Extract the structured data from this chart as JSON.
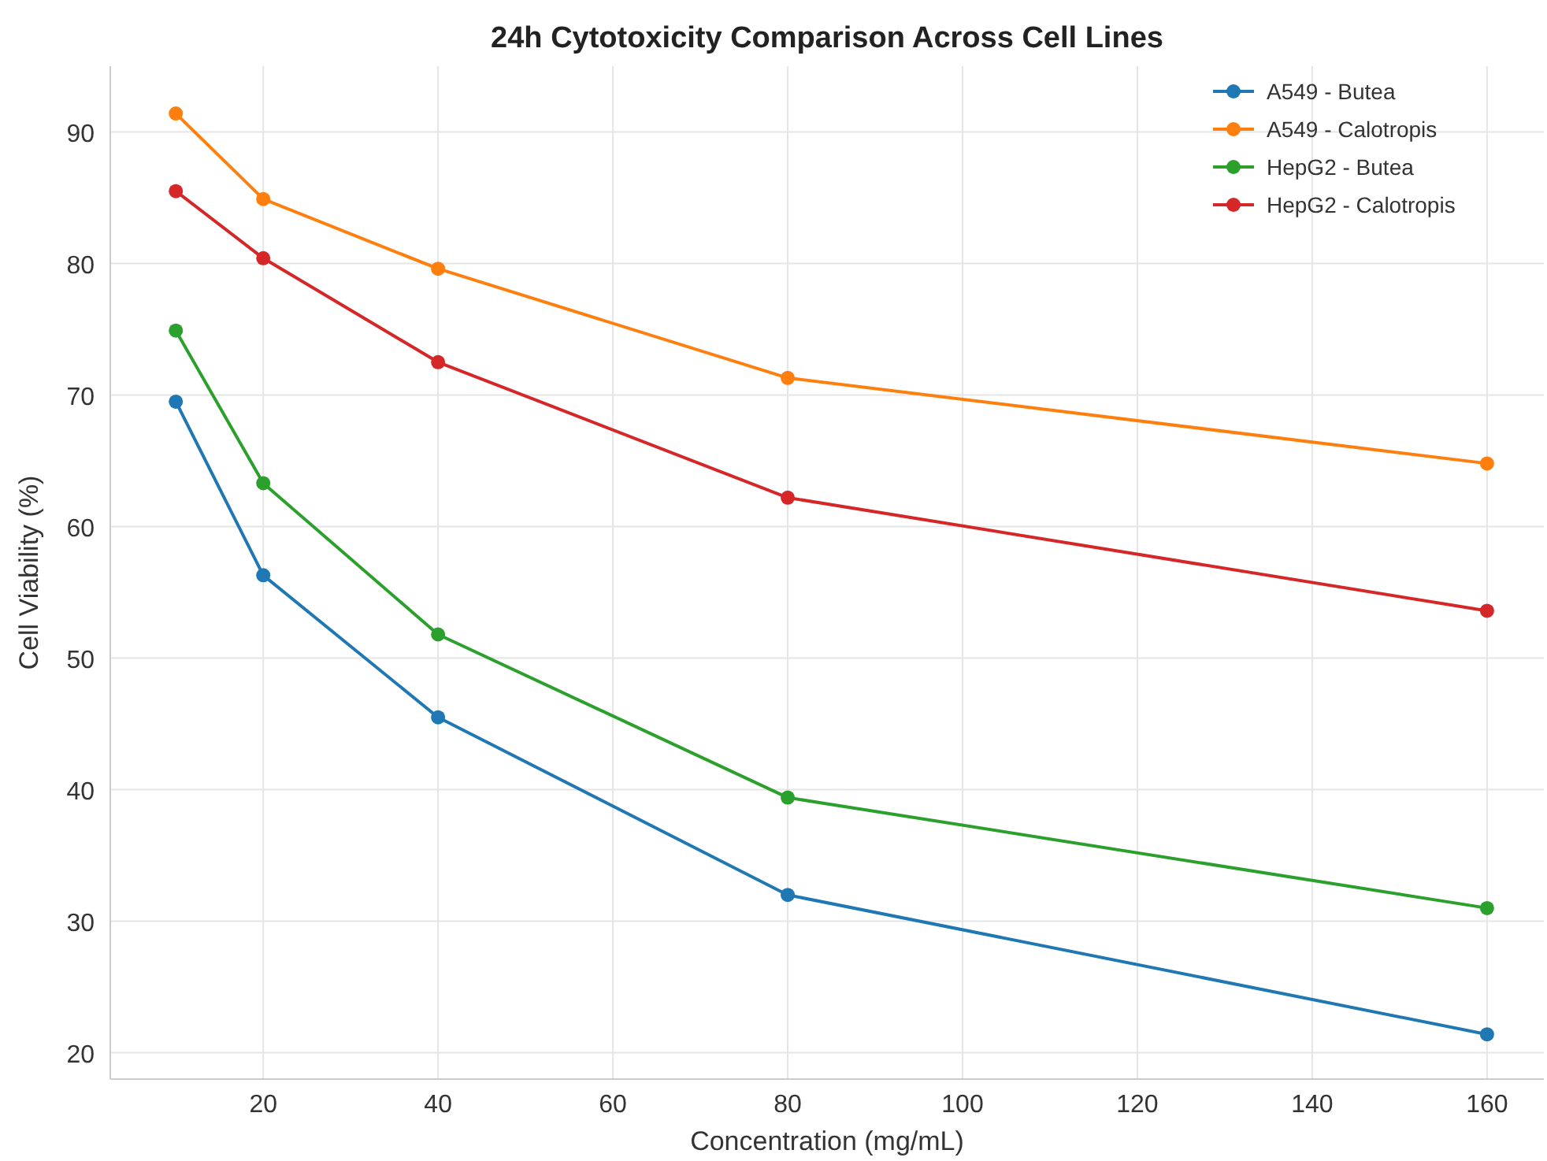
{
  "chart_data": {
    "type": "line",
    "title": "24h Cytotoxicity Comparison Across Cell Lines",
    "xlabel": "Concentration (mg/mL)",
    "ylabel": "Cell Viability (%)",
    "x": [
      10,
      20,
      40,
      80,
      160
    ],
    "series": [
      {
        "name": "A549 - Butea",
        "color": "#1f77b4",
        "values": [
          69.5,
          56.3,
          45.5,
          32.0,
          21.4
        ]
      },
      {
        "name": "A549 - Calotropis",
        "color": "#ff7f0e",
        "values": [
          91.4,
          84.9,
          79.6,
          71.3,
          64.8
        ]
      },
      {
        "name": "HepG2 - Butea",
        "color": "#2ca02c",
        "values": [
          74.9,
          63.3,
          51.8,
          39.4,
          31.0
        ]
      },
      {
        "name": "HepG2 - Calotropis",
        "color": "#d62728",
        "values": [
          85.5,
          80.4,
          72.5,
          62.2,
          53.6
        ]
      }
    ],
    "xlim": [
      2.5,
      166.5
    ],
    "xticks": [
      20,
      40,
      60,
      80,
      100,
      120,
      140,
      160
    ],
    "ylim": [
      18,
      95
    ],
    "yticks": [
      20,
      30,
      40,
      50,
      60,
      70,
      80,
      90
    ],
    "grid": true,
    "legend": "top right",
    "marker": "circle",
    "line_style": "solid"
  }
}
